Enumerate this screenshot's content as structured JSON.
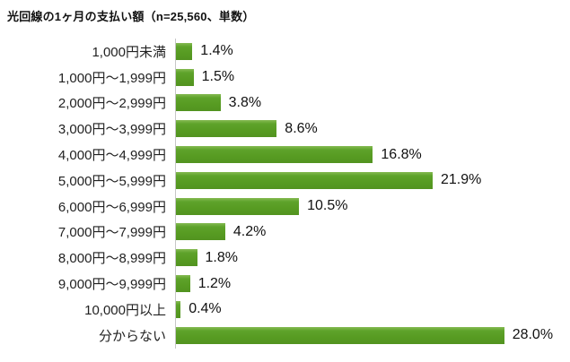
{
  "chart_data": {
    "type": "bar",
    "orientation": "horizontal",
    "title": "光回線の1ヶ月の支払い額（n=25,560、単数）",
    "categories": [
      "1,000円未満",
      "1,000円～1,999円",
      "2,000円～2,999円",
      "3,000円～3,999円",
      "4,000円～4,999円",
      "5,000円～5,999円",
      "6,000円～6,999円",
      "7,000円～7,999円",
      "8,000円～8,999円",
      "9,000円～9,999円",
      "10,000円以上",
      "分からない"
    ],
    "values": [
      1.4,
      1.5,
      3.8,
      8.6,
      16.8,
      21.9,
      10.5,
      4.2,
      1.8,
      1.2,
      0.4,
      28.0
    ],
    "value_labels": [
      "1.4%",
      "1.5%",
      "3.8%",
      "8.6%",
      "16.8%",
      "21.9%",
      "10.5%",
      "4.2%",
      "1.8%",
      "1.2%",
      "0.4%",
      "28.0%"
    ],
    "xlabel": "",
    "ylabel": "",
    "xlim": [
      0,
      30
    ],
    "grid": false,
    "legend": false,
    "bar_color": "#579b22",
    "axis_line_color": "#c6c6c6"
  }
}
